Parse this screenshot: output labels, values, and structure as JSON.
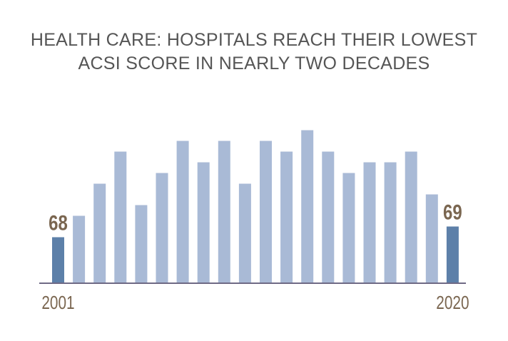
{
  "chart_data": {
    "type": "bar",
    "title": "HEALTH CARE: HOSPITALS REACH THEIR LOWEST ACSI SCORE IN NEARLY TWO DECADES",
    "categories": [
      "2001",
      null,
      null,
      null,
      null,
      null,
      null,
      null,
      null,
      null,
      null,
      null,
      null,
      null,
      null,
      null,
      null,
      null,
      null,
      "2020"
    ],
    "values": [
      68,
      70,
      73,
      76,
      71,
      74,
      77,
      75,
      77,
      73,
      77,
      76,
      78,
      76,
      74,
      75,
      75,
      76,
      72,
      69
    ],
    "value_labels": [
      "68",
      null,
      null,
      null,
      null,
      null,
      null,
      null,
      null,
      null,
      null,
      null,
      null,
      null,
      null,
      null,
      null,
      null,
      null,
      "69"
    ],
    "color": "#a9bad6",
    "highlight_color": "#5d80a9",
    "ylim": [
      63.7,
      79.7
    ]
  }
}
